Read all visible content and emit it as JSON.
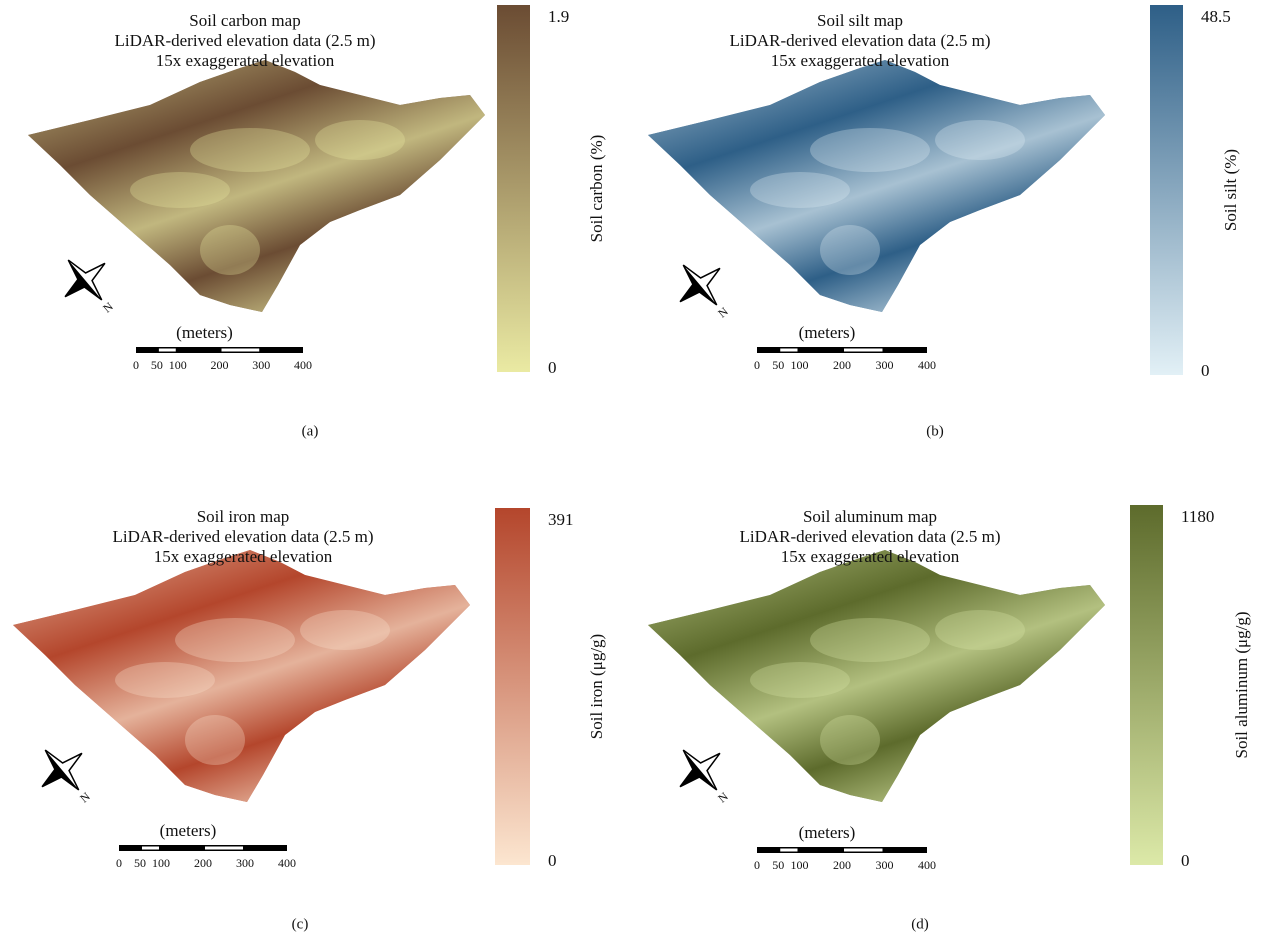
{
  "panels": [
    {
      "label": "(a)",
      "title": [
        "Soil carbon map",
        "LiDAR-derived elevation data (2.5 m)",
        "15x exaggerated elevation"
      ],
      "colorbar": {
        "label": "Soil carbon (%)",
        "min": 0,
        "max": 1.9,
        "colors": [
          "#eaeaa3",
          "#6b4c33"
        ]
      },
      "scale_bar": {
        "title": "(meters)",
        "ticks": [
          0,
          50,
          100,
          200,
          300,
          400
        ]
      },
      "north": "N"
    },
    {
      "label": "(b)",
      "title": [
        "Soil silt map",
        "LiDAR-derived elevation data (2.5 m)",
        "15x exaggerated elevation"
      ],
      "colorbar": {
        "label": "Soil silt (%)",
        "min": 0,
        "max": 48.5,
        "colors": [
          "#e2f0f6",
          "#2e5f87"
        ]
      },
      "scale_bar": {
        "title": "(meters)",
        "ticks": [
          0,
          50,
          100,
          200,
          300,
          400
        ]
      },
      "north": "N"
    },
    {
      "label": "(c)",
      "title": [
        "Soil iron map",
        "LiDAR-derived elevation data (2.5 m)",
        "15x exaggerated elevation"
      ],
      "colorbar": {
        "label": "Soil iron (μg/g)",
        "min": 0,
        "max": 391,
        "colors": [
          "#fce6d0",
          "#b4462c"
        ]
      },
      "scale_bar": {
        "title": "(meters)",
        "ticks": [
          0,
          50,
          100,
          200,
          300,
          400
        ]
      },
      "north": "N"
    },
    {
      "label": "(d)",
      "title": [
        "Soil aluminum map",
        "LiDAR-derived elevation data (2.5 m)",
        "15x exaggerated elevation"
      ],
      "colorbar": {
        "label": "Soil aluminum (μg/g)",
        "min": 0,
        "max": 1180,
        "colors": [
          "#dce9a8",
          "#5d6b2c"
        ]
      },
      "scale_bar": {
        "title": "(meters)",
        "ticks": [
          0,
          50,
          100,
          200,
          300,
          400
        ]
      },
      "north": "N"
    }
  ]
}
